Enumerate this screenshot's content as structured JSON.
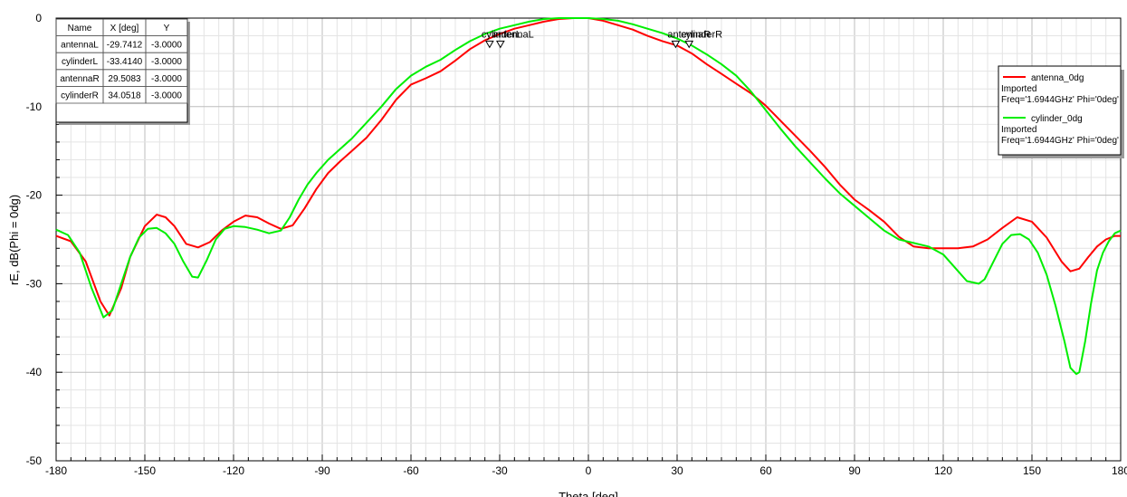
{
  "chart_data": {
    "type": "line",
    "xlabel": "Theta [deg]",
    "ylabel": "rE, dB(Phi = 0dg)",
    "xlim": [
      -180,
      180
    ],
    "ylim": [
      -50,
      0
    ],
    "x_ticks": [
      "-180",
      "-150",
      "-120",
      "-90",
      "-60",
      "-30",
      "0",
      "30",
      "60",
      "90",
      "120",
      "150",
      "180"
    ],
    "y_ticks": [
      "0",
      "-10",
      "-20",
      "-30",
      "-40",
      "-50"
    ],
    "grid": true,
    "series": [
      {
        "name": "antenna_0dg",
        "color": "#ff0000",
        "x": [
          -180,
          -175,
          -170,
          -165,
          -162,
          -158,
          -155,
          -150,
          -146,
          -143,
          -140,
          -136,
          -132,
          -128,
          -124,
          -120,
          -116,
          -112,
          -108,
          -104,
          -100,
          -96,
          -92,
          -88,
          -84,
          -80,
          -75,
          -70,
          -65,
          -60,
          -55,
          -50,
          -45,
          -40,
          -35,
          -30,
          -25,
          -20,
          -15,
          -10,
          -5,
          0,
          5,
          10,
          15,
          20,
          25,
          30,
          35,
          40,
          45,
          50,
          55,
          60,
          65,
          70,
          75,
          80,
          85,
          90,
          95,
          100,
          105,
          110,
          115,
          120,
          125,
          130,
          135,
          140,
          145,
          150,
          155,
          160,
          163,
          166,
          169,
          172,
          175,
          178,
          180
        ],
        "y": [
          -24.6,
          -25.2,
          -27.5,
          -32,
          -33.6,
          -30.5,
          -27,
          -23.5,
          -22.2,
          -22.5,
          -23.5,
          -25.5,
          -25.9,
          -25.3,
          -24,
          -23,
          -22.3,
          -22.5,
          -23.2,
          -23.8,
          -23.4,
          -21.5,
          -19.3,
          -17.5,
          -16.2,
          -15,
          -13.5,
          -11.5,
          -9.2,
          -7.5,
          -6.8,
          -6,
          -4.8,
          -3.5,
          -2.5,
          -1.8,
          -1.2,
          -0.8,
          -0.4,
          -0.1,
          0,
          0,
          -0.3,
          -0.8,
          -1.3,
          -2,
          -2.6,
          -3.1,
          -4,
          -5.2,
          -6.3,
          -7.4,
          -8.5,
          -9.9,
          -11.6,
          -13.3,
          -15,
          -16.8,
          -18.8,
          -20.5,
          -21.7,
          -23,
          -24.7,
          -25.8,
          -26,
          -26,
          -26,
          -25.8,
          -25,
          -23.7,
          -22.5,
          -23,
          -24.8,
          -27.5,
          -28.6,
          -28.3,
          -27,
          -25.8,
          -25,
          -24.6,
          -24.6
        ]
      },
      {
        "name": "cylinder_0dg",
        "color": "#00ee00",
        "x": [
          -180,
          -176,
          -172,
          -168,
          -164,
          -161,
          -158,
          -155,
          -152,
          -149,
          -146,
          -143,
          -140,
          -137,
          -134,
          -132,
          -129,
          -126,
          -123,
          -120,
          -116,
          -112,
          -108,
          -104,
          -101,
          -98,
          -95,
          -92,
          -88,
          -84,
          -80,
          -75,
          -70,
          -65,
          -60,
          -55,
          -50,
          -45,
          -40,
          -35,
          -30,
          -25,
          -20,
          -15,
          -10,
          -5,
          0,
          5,
          10,
          15,
          20,
          25,
          30,
          35,
          40,
          45,
          50,
          55,
          60,
          65,
          70,
          75,
          80,
          85,
          90,
          95,
          100,
          105,
          110,
          115,
          120,
          124,
          128,
          132,
          134,
          137,
          140,
          143,
          146,
          149,
          152,
          155,
          158,
          161,
          163,
          165,
          166,
          168,
          170,
          172,
          174,
          176,
          178,
          180
        ],
        "y": [
          -23.9,
          -24.5,
          -26.5,
          -30.5,
          -33.8,
          -33,
          -30,
          -27,
          -24.8,
          -23.8,
          -23.7,
          -24.3,
          -25.5,
          -27.5,
          -29.2,
          -29.3,
          -27.3,
          -25,
          -23.8,
          -23.5,
          -23.6,
          -23.9,
          -24.3,
          -24,
          -22.5,
          -20.5,
          -18.8,
          -17.5,
          -16,
          -14.8,
          -13.6,
          -11.8,
          -10,
          -8,
          -6.5,
          -5.5,
          -4.7,
          -3.6,
          -2.6,
          -1.8,
          -1.2,
          -0.8,
          -0.4,
          -0.1,
          0,
          0,
          0,
          -0.1,
          -0.3,
          -0.7,
          -1.2,
          -1.7,
          -2.3,
          -3.1,
          -4.1,
          -5.2,
          -6.5,
          -8.3,
          -10.4,
          -12.5,
          -14.5,
          -16.3,
          -18.1,
          -19.8,
          -21.2,
          -22.6,
          -24,
          -25,
          -25.4,
          -25.8,
          -26.7,
          -28.2,
          -29.7,
          -30,
          -29.5,
          -27.5,
          -25.5,
          -24.5,
          -24.4,
          -25,
          -26.5,
          -29,
          -32.5,
          -36.5,
          -39.5,
          -40.2,
          -40,
          -36.5,
          -32.2,
          -28.5,
          -26.5,
          -25.2,
          -24.3,
          -24
        ]
      }
    ],
    "markers": [
      {
        "name": "antennaL",
        "x": -29.7412,
        "y": -3.0
      },
      {
        "name": "cylinderL",
        "x": -33.414,
        "y": -3.0
      },
      {
        "name": "antennaR",
        "x": 29.5083,
        "y": -3.0
      },
      {
        "name": "cylinderR",
        "x": 34.0518,
        "y": -3.0
      }
    ],
    "marker_table": {
      "headers": [
        "Name",
        "X [deg]",
        "Y"
      ],
      "rows": [
        [
          "antennaL",
          "-29.7412",
          "-3.0000"
        ],
        [
          "cylinderL",
          "-33.4140",
          "-3.0000"
        ],
        [
          "antennaR",
          "29.5083",
          "-3.0000"
        ],
        [
          "cylinderR",
          "34.0518",
          "-3.0000"
        ]
      ]
    },
    "legend": {
      "placement": "right",
      "entries": [
        {
          "name": "antenna_0dg",
          "color": "#ff0000",
          "lines": [
            "Imported",
            "Freq='1.6944GHz' Phi='0deg'"
          ]
        },
        {
          "name": "cylinder_0dg",
          "color": "#00ee00",
          "lines": [
            "Imported",
            "Freq='1.6944GHz' Phi='0deg'"
          ]
        }
      ]
    }
  }
}
